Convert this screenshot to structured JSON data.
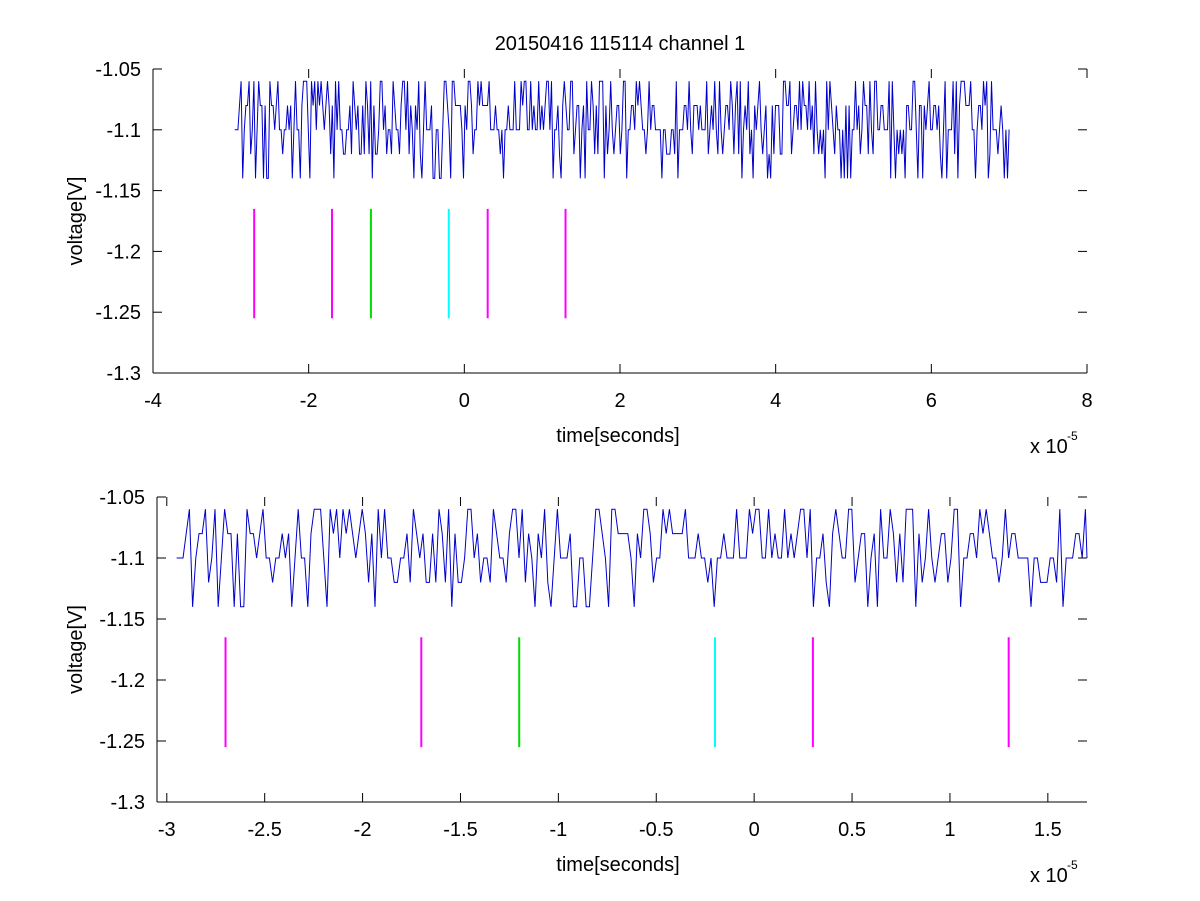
{
  "figure": {
    "title": "20150416 115114 channel 1",
    "background": "#ffffff"
  },
  "colors": {
    "signal": "#0000cc",
    "magenta": "#ff00ff",
    "green": "#00dd00",
    "cyan": "#00ffff",
    "axes": "#000000"
  },
  "chart_data": [
    {
      "type": "line",
      "title": "20150416 115114 channel 1",
      "xlabel": "time[seconds]",
      "ylabel": "voltage[V]",
      "x_multiplier_label": "x 10",
      "x_multiplier_exponent": "-5",
      "xlim": [
        -4,
        8
      ],
      "ylim": [
        -1.3,
        -1.05
      ],
      "xticks": [
        -4,
        -2,
        0,
        2,
        4,
        6,
        8
      ],
      "xtick_labels": [
        "-4",
        "-2",
        "0",
        "2",
        "4",
        "6",
        "8"
      ],
      "yticks": [
        -1.3,
        -1.25,
        -1.2,
        -1.15,
        -1.1,
        -1.05
      ],
      "ytick_labels": [
        "-1.3",
        "-1.25",
        "-1.2",
        "-1.15",
        "-1.1",
        "-1.05"
      ],
      "grid": false,
      "series": [
        {
          "style": "step-noise",
          "color": "#0000cc",
          "x_range": [
            -2.95,
            7.0
          ],
          "baseline": -1.1,
          "levels": [
            -1.14,
            -1.12,
            -1.1,
            -1.08,
            -1.06
          ]
        }
      ],
      "markers": [
        {
          "x": -2.7,
          "y_range": [
            -1.255,
            -1.165
          ],
          "color": "#ff00ff"
        },
        {
          "x": -1.7,
          "y_range": [
            -1.255,
            -1.165
          ],
          "color": "#ff00ff"
        },
        {
          "x": -1.2,
          "y_range": [
            -1.255,
            -1.165
          ],
          "color": "#00dd00"
        },
        {
          "x": -0.2,
          "y_range": [
            -1.255,
            -1.165
          ],
          "color": "#00ffff"
        },
        {
          "x": 0.3,
          "y_range": [
            -1.255,
            -1.165
          ],
          "color": "#ff00ff"
        },
        {
          "x": 1.3,
          "y_range": [
            -1.255,
            -1.165
          ],
          "color": "#ff00ff"
        }
      ]
    },
    {
      "type": "line",
      "title": "",
      "xlabel": "time[seconds]",
      "ylabel": "voltage[V]",
      "x_multiplier_label": "x 10",
      "x_multiplier_exponent": "-5",
      "xlim": [
        -3.05,
        1.7
      ],
      "ylim": [
        -1.3,
        -1.05
      ],
      "xticks": [
        -3,
        -2.5,
        -2,
        -1.5,
        -1,
        -0.5,
        0,
        0.5,
        1,
        1.5
      ],
      "xtick_labels": [
        "-3",
        "-2.5",
        "-2",
        "-1.5",
        "-1",
        "-0.5",
        "0",
        "0.5",
        "1",
        "1.5"
      ],
      "yticks": [
        -1.3,
        -1.25,
        -1.2,
        -1.15,
        -1.1,
        -1.05
      ],
      "ytick_labels": [
        "-1.3",
        "-1.25",
        "-1.2",
        "-1.15",
        "-1.1",
        "-1.05"
      ],
      "grid": false,
      "series": [
        {
          "style": "step-noise",
          "color": "#0000cc",
          "x_range": [
            -2.95,
            1.7
          ],
          "baseline": -1.1,
          "levels": [
            -1.14,
            -1.12,
            -1.1,
            -1.08,
            -1.06
          ]
        }
      ],
      "markers": [
        {
          "x": -2.7,
          "y_range": [
            -1.255,
            -1.165
          ],
          "color": "#ff00ff"
        },
        {
          "x": -1.7,
          "y_range": [
            -1.255,
            -1.165
          ],
          "color": "#ff00ff"
        },
        {
          "x": -1.2,
          "y_range": [
            -1.255,
            -1.165
          ],
          "color": "#00dd00"
        },
        {
          "x": -0.2,
          "y_range": [
            -1.255,
            -1.165
          ],
          "color": "#00ffff"
        },
        {
          "x": 0.3,
          "y_range": [
            -1.255,
            -1.165
          ],
          "color": "#ff00ff"
        },
        {
          "x": 1.3,
          "y_range": [
            -1.255,
            -1.165
          ],
          "color": "#ff00ff"
        }
      ]
    }
  ]
}
